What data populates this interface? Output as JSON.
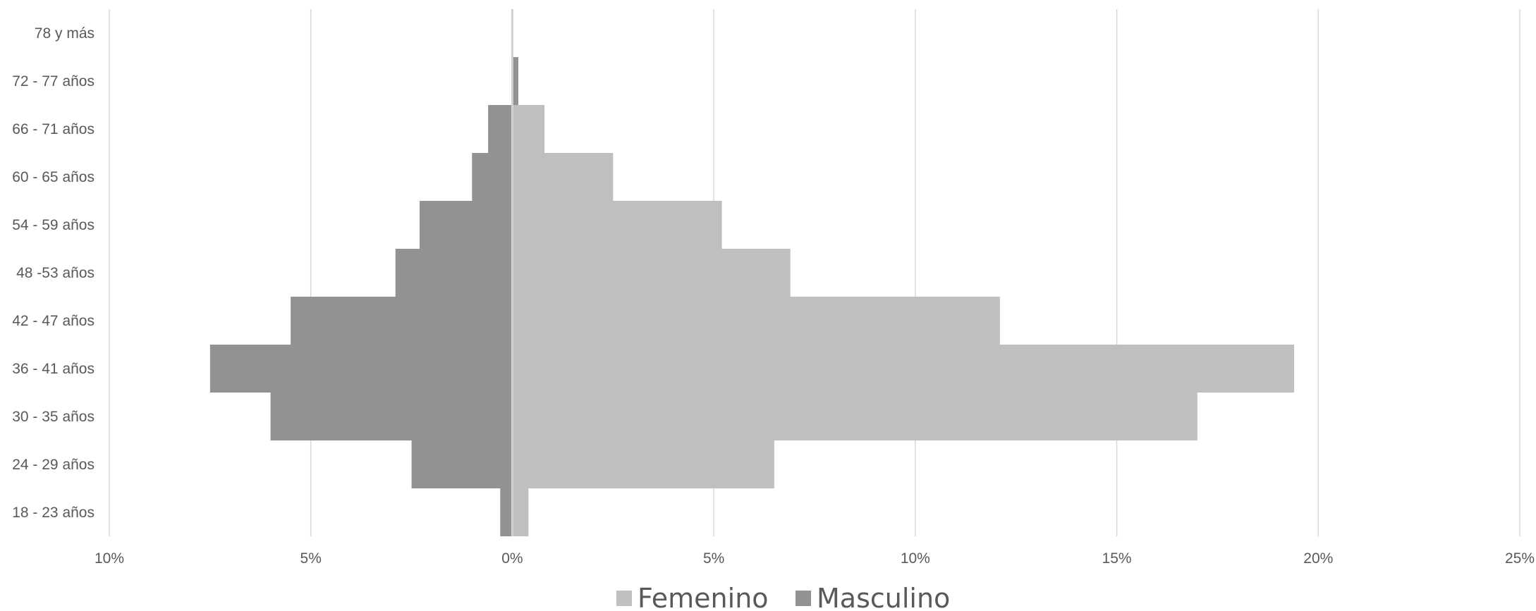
{
  "chart_data": {
    "type": "bar",
    "orientation": "horizontal",
    "stacking": "population-pyramid",
    "categories": [
      "18 - 23 años",
      "24 - 29 años",
      "30 - 35 años",
      "36 - 41 años",
      "42 - 47 años",
      "48 -53 años",
      "54 - 59 años",
      "60 - 65 años",
      "66 - 71 años",
      "72 - 77 años",
      "78 y más"
    ],
    "series": [
      {
        "name": "Femenino",
        "values": [
          0.4,
          6.5,
          17.0,
          19.4,
          12.1,
          6.9,
          5.2,
          2.5,
          0.8,
          0.1,
          0.0
        ],
        "color": "#bfbfbf"
      },
      {
        "name": "Masculino",
        "values": [
          -0.3,
          -2.5,
          -6.0,
          -7.5,
          -5.5,
          -2.9,
          -2.3,
          -1.0,
          -0.6,
          0.15,
          0.0
        ],
        "color": "#929292"
      }
    ],
    "x_ticks": [
      "10%",
      "5%",
      "0%",
      "5%",
      "10%",
      "15%",
      "20%",
      "25%"
    ],
    "xlim": [
      -10,
      25
    ],
    "grid": true,
    "legend_position": "bottom"
  }
}
